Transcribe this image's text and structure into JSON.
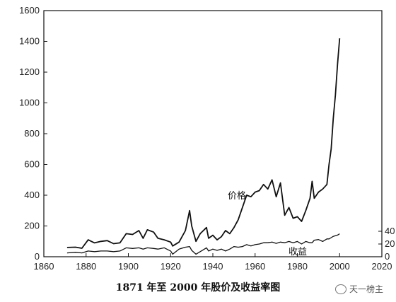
{
  "chart_data": {
    "type": "line",
    "title": "1871 年至 2000 年股价及收益率图",
    "xlim": [
      1860,
      2020
    ],
    "ylim": [
      0,
      1600
    ],
    "x_ticks": [
      1860,
      1880,
      1900,
      1920,
      1940,
      1960,
      1980,
      2000,
      2020
    ],
    "y_ticks": [
      0,
      200,
      400,
      600,
      800,
      1000,
      1200,
      1400,
      1600
    ],
    "right_axis": {
      "ticks": [
        0,
        20,
        40
      ]
    },
    "series": [
      {
        "name": "价格",
        "axis": "left",
        "x": [
          1871,
          1875,
          1878,
          1881,
          1884,
          1887,
          1890,
          1893,
          1896,
          1899,
          1902,
          1905,
          1907,
          1909,
          1912,
          1914,
          1917,
          1920,
          1921,
          1924,
          1927,
          1929,
          1930,
          1932,
          1934,
          1937,
          1938,
          1940,
          1942,
          1944,
          1946,
          1948,
          1950,
          1952,
          1954,
          1956,
          1958,
          1960,
          1962,
          1964,
          1966,
          1968,
          1970,
          1972,
          1974,
          1976,
          1978,
          1980,
          1982,
          1984,
          1986,
          1987,
          1988,
          1990,
          1992,
          1994,
          1995,
          1996,
          1997,
          1998,
          1999,
          2000
        ],
        "y": [
          60,
          62,
          55,
          110,
          90,
          100,
          105,
          85,
          90,
          150,
          145,
          170,
          120,
          175,
          160,
          120,
          110,
          95,
          70,
          95,
          170,
          300,
          200,
          100,
          150,
          190,
          120,
          140,
          110,
          130,
          170,
          150,
          190,
          240,
          320,
          400,
          390,
          420,
          430,
          470,
          440,
          500,
          390,
          480,
          270,
          320,
          250,
          260,
          230,
          300,
          380,
          490,
          380,
          420,
          440,
          470,
          600,
          700,
          900,
          1050,
          1250,
          1420
        ]
      },
      {
        "name": "收益",
        "axis": "right",
        "x": [
          1871,
          1875,
          1878,
          1881,
          1884,
          1887,
          1890,
          1893,
          1896,
          1899,
          1902,
          1905,
          1907,
          1909,
          1912,
          1914,
          1917,
          1920,
          1921,
          1924,
          1927,
          1929,
          1930,
          1932,
          1934,
          1937,
          1938,
          1940,
          1942,
          1944,
          1946,
          1948,
          1950,
          1952,
          1954,
          1956,
          1958,
          1960,
          1962,
          1964,
          1966,
          1968,
          1970,
          1972,
          1974,
          1976,
          1978,
          1980,
          1982,
          1984,
          1986,
          1987,
          1988,
          1990,
          1992,
          1994,
          1995,
          1996,
          1997,
          1998,
          1999,
          2000
        ],
        "y": [
          6,
          7,
          6,
          9,
          8,
          9,
          9,
          8,
          9,
          14,
          13,
          14,
          12,
          14,
          13,
          12,
          14,
          9,
          4,
          12,
          15,
          16,
          10,
          4,
          8,
          14,
          9,
          12,
          10,
          12,
          9,
          12,
          16,
          15,
          16,
          19,
          17,
          19,
          20,
          22,
          22,
          23,
          21,
          23,
          22,
          24,
          22,
          24,
          20,
          24,
          22,
          22,
          26,
          27,
          24,
          28,
          28,
          30,
          32,
          33,
          34,
          36
        ]
      }
    ]
  },
  "watermark": {
    "text": "天一榜主",
    "icon": "chat-bubble-icon"
  }
}
